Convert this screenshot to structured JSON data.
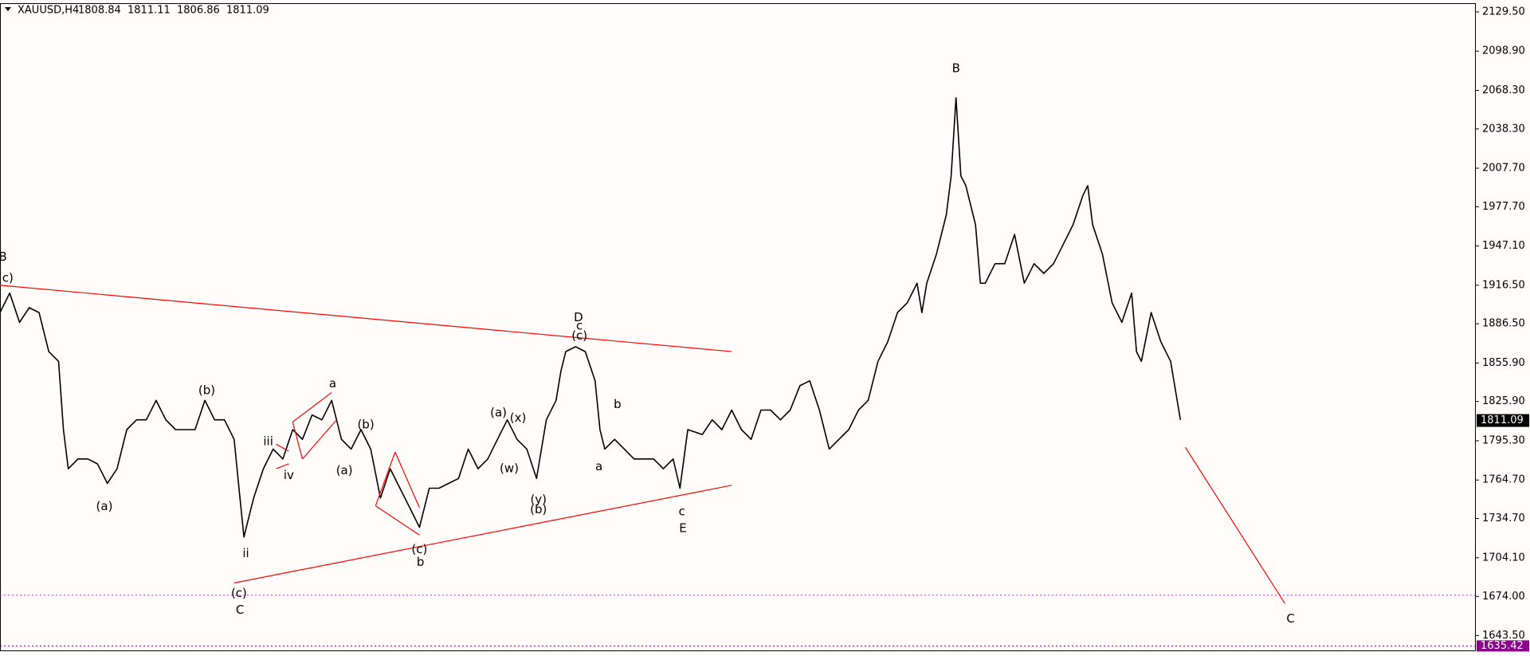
{
  "chart_data": {
    "type": "line",
    "title": "XAUUSD,H4",
    "open": 1808.84,
    "high": 1811.11,
    "low": 1806.86,
    "close": 1811.09,
    "color": "#000000",
    "xlim": [
      0,
      1512
    ],
    "ylim": [
      1631.3,
      2136.3
    ],
    "yticks": [
      {
        "value": 2129.5,
        "label": "2129.50"
      },
      {
        "value": 2098.9,
        "label": "2098.90"
      },
      {
        "value": 2068.3,
        "label": "2068.30"
      },
      {
        "value": 2038.3,
        "label": "2038.30"
      },
      {
        "value": 2007.7,
        "label": "2007.70"
      },
      {
        "value": 1977.7,
        "label": "1977.70"
      },
      {
        "value": 1947.1,
        "label": "1947.10"
      },
      {
        "value": 1916.5,
        "label": "1916.50"
      },
      {
        "value": 1886.5,
        "label": "1886.50"
      },
      {
        "value": 1855.9,
        "label": "1855.90"
      },
      {
        "value": 1825.9,
        "label": "1825.90"
      },
      {
        "value": 1795.3,
        "label": "1795.30"
      },
      {
        "value": 1764.7,
        "label": "1764.70"
      },
      {
        "value": 1734.7,
        "label": "1734.70"
      },
      {
        "value": 1704.1,
        "label": "1704.10"
      },
      {
        "value": 1674.0,
        "label": "1674.00"
      },
      {
        "value": 1643.5,
        "label": "1643.50"
      }
    ],
    "x": [
      0,
      10,
      20,
      30,
      40,
      50,
      60,
      65,
      70,
      80,
      90,
      100,
      110,
      120,
      130,
      140,
      150,
      160,
      170,
      180,
      190,
      200,
      210,
      220,
      230,
      240,
      245,
      250,
      255,
      260,
      270,
      280,
      290,
      300,
      310,
      320,
      330,
      340,
      350,
      360,
      370,
      380,
      390,
      400,
      410,
      420,
      430,
      440,
      450,
      460,
      470,
      480,
      490,
      500,
      510,
      520,
      530,
      540,
      550,
      560,
      570,
      575,
      580,
      590,
      600,
      610,
      615,
      620,
      630,
      640,
      650,
      660,
      670,
      680,
      690,
      697,
      705,
      720,
      730,
      740,
      750,
      760,
      770,
      780,
      790,
      800,
      810,
      820,
      830,
      840,
      850,
      860,
      870,
      880,
      890,
      900,
      910,
      920,
      930,
      940,
      945,
      950,
      960,
      970,
      975,
      980,
      985,
      990,
      1000,
      1005,
      1010,
      1020,
      1030,
      1040,
      1050,
      1060,
      1070,
      1080,
      1090,
      1100,
      1110,
      1115,
      1120,
      1130,
      1140,
      1150,
      1160,
      1165,
      1170,
      1180,
      1190,
      1200,
      1210
    ],
    "values": [
      1895.2,
      1910.4,
      1887.6,
      1899.0,
      1895.2,
      1864.8,
      1857.2,
      1804.0,
      1773.5,
      1781.1,
      1781.1,
      1777.3,
      1762.1,
      1773.5,
      1804.0,
      1811.6,
      1811.6,
      1826.8,
      1811.6,
      1804.0,
      1804.0,
      1804.0,
      1826.8,
      1811.6,
      1811.6,
      1796.4,
      1758.3,
      1720.3,
      1735.5,
      1750.7,
      1773.5,
      1788.8,
      1781.1,
      1804.0,
      1796.4,
      1815.4,
      1811.6,
      1826.8,
      1796.4,
      1788.8,
      1804.0,
      1788.8,
      1750.7,
      1773.5,
      1758.3,
      1743.1,
      1727.9,
      1758.3,
      1758.3,
      1762.1,
      1765.9,
      1788.8,
      1773.5,
      1781.1,
      1796.4,
      1811.6,
      1796.4,
      1788.8,
      1765.9,
      1811.6,
      1826.8,
      1849.6,
      1864.8,
      1868.6,
      1864.8,
      1842.0,
      1804.0,
      1788.8,
      1796.4,
      1788.8,
      1781.1,
      1781.1,
      1781.1,
      1773.5,
      1781.1,
      1758.3,
      1804.0,
      1800.2,
      1811.6,
      1804.0,
      1819.2,
      1804.0,
      1796.4,
      1819.2,
      1819.2,
      1811.6,
      1819.2,
      1838.2,
      1842.0,
      1819.2,
      1788.8,
      1796.4,
      1804.0,
      1819.2,
      1826.8,
      1857.2,
      1872.4,
      1895.2,
      1902.8,
      1918.1,
      1895.2,
      1918.1,
      1940.9,
      1971.3,
      2001.7,
      2062.6,
      2001.7,
      1994.1,
      1963.7,
      1918.1,
      1918.1,
      1933.3,
      1933.3,
      1956.1,
      1918.1,
      1933.3,
      1925.7,
      1933.3,
      1948.5,
      1963.7,
      1986.5,
      1994.1,
      1963.7,
      1940.9,
      1902.8,
      1887.6,
      1910.4,
      1864.8,
      1857.2,
      1895.2,
      1872.4,
      1857.2,
      1811.6
    ],
    "annotations": [
      {
        "text": "B",
        "x": 3,
        "y": 1938.6
      },
      {
        "text": "c)",
        "x": 8,
        "y": 1921.9
      },
      {
        "text": "(a)",
        "x": 107,
        "y": 1743.9
      },
      {
        "text": "(b)",
        "x": 212,
        "y": 1834.4
      },
      {
        "text": "ii",
        "x": 252,
        "y": 1707.4
      },
      {
        "text": "iii",
        "x": 275,
        "y": 1794.8
      },
      {
        "text": "iv",
        "x": 296,
        "y": 1768.2
      },
      {
        "text": "a",
        "x": 341,
        "y": 1839.7
      },
      {
        "text": "(a)",
        "x": 353,
        "y": 1772.0
      },
      {
        "text": "(b)",
        "x": 375,
        "y": 1807.8
      },
      {
        "text": "(c)",
        "x": 430,
        "y": 1710.4
      },
      {
        "text": "b",
        "x": 431,
        "y": 1700.5
      },
      {
        "text": "(c)",
        "x": 245,
        "y": 1676.2
      },
      {
        "text": "C",
        "x": 246,
        "y": 1663.3
      },
      {
        "text": "(a)",
        "x": 511,
        "y": 1816.9
      },
      {
        "text": "(x)",
        "x": 531,
        "y": 1813.1
      },
      {
        "text": "(w)",
        "x": 522,
        "y": 1773.5
      },
      {
        "text": "(y)",
        "x": 552,
        "y": 1749.2
      },
      {
        "text": "(b)",
        "x": 552,
        "y": 1741.6
      },
      {
        "text": "D",
        "x": 593,
        "y": 1891.4
      },
      {
        "text": "c",
        "x": 594,
        "y": 1884.6
      },
      {
        "text": "(c)",
        "x": 594,
        "y": 1877.0
      },
      {
        "text": "b",
        "x": 633,
        "y": 1823.7
      },
      {
        "text": "a",
        "x": 614,
        "y": 1775.1
      },
      {
        "text": "c",
        "x": 699,
        "y": 1740.1
      },
      {
        "text": "E",
        "x": 700,
        "y": 1727.1
      },
      {
        "text": "B",
        "x": 980,
        "y": 2085.4
      },
      {
        "text": "C",
        "x": 1323,
        "y": 1656.4
      }
    ],
    "lines": [
      {
        "x1": 0,
        "y1": 1916.5,
        "x2": 750,
        "y2": 1864.8,
        "color": "#ff0000"
      },
      {
        "x1": 240,
        "y1": 1684.5,
        "x2": 750,
        "y2": 1760.6,
        "color": "#ff0000"
      },
      {
        "x1": 1215,
        "y1": 1790.3,
        "x2": 1317,
        "y2": 1668.6,
        "color": "#ff0000"
      },
      {
        "x1": 300,
        "y1": 1810.0,
        "x2": 340,
        "y2": 1832.9,
        "color": "#ff0000"
      },
      {
        "x1": 310,
        "y1": 1781.1,
        "x2": 345,
        "y2": 1811.6,
        "color": "#ff0000"
      },
      {
        "x1": 300,
        "y1": 1810.0,
        "x2": 310,
        "y2": 1781.1,
        "color": "#ff0000"
      },
      {
        "x1": 385,
        "y1": 1744.6,
        "x2": 430,
        "y2": 1721.8,
        "color": "#ff0000"
      },
      {
        "x1": 405,
        "y1": 1786.5,
        "x2": 430,
        "y2": 1743.1,
        "color": "#ff0000"
      },
      {
        "x1": 385,
        "y1": 1744.6,
        "x2": 405,
        "y2": 1786.5,
        "color": "#ff0000"
      },
      {
        "x1": 283,
        "y1": 1792.6,
        "x2": 296,
        "y2": 1787.2,
        "color": "#ff0000"
      },
      {
        "x1": 283,
        "y1": 1773.5,
        "x2": 296,
        "y2": 1777.3,
        "color": "#ff0000"
      }
    ],
    "hlines": [
      {
        "value": 1675,
        "color": "#c040c0"
      },
      {
        "value": 1635.42,
        "color": "#8b008b"
      }
    ]
  }
}
